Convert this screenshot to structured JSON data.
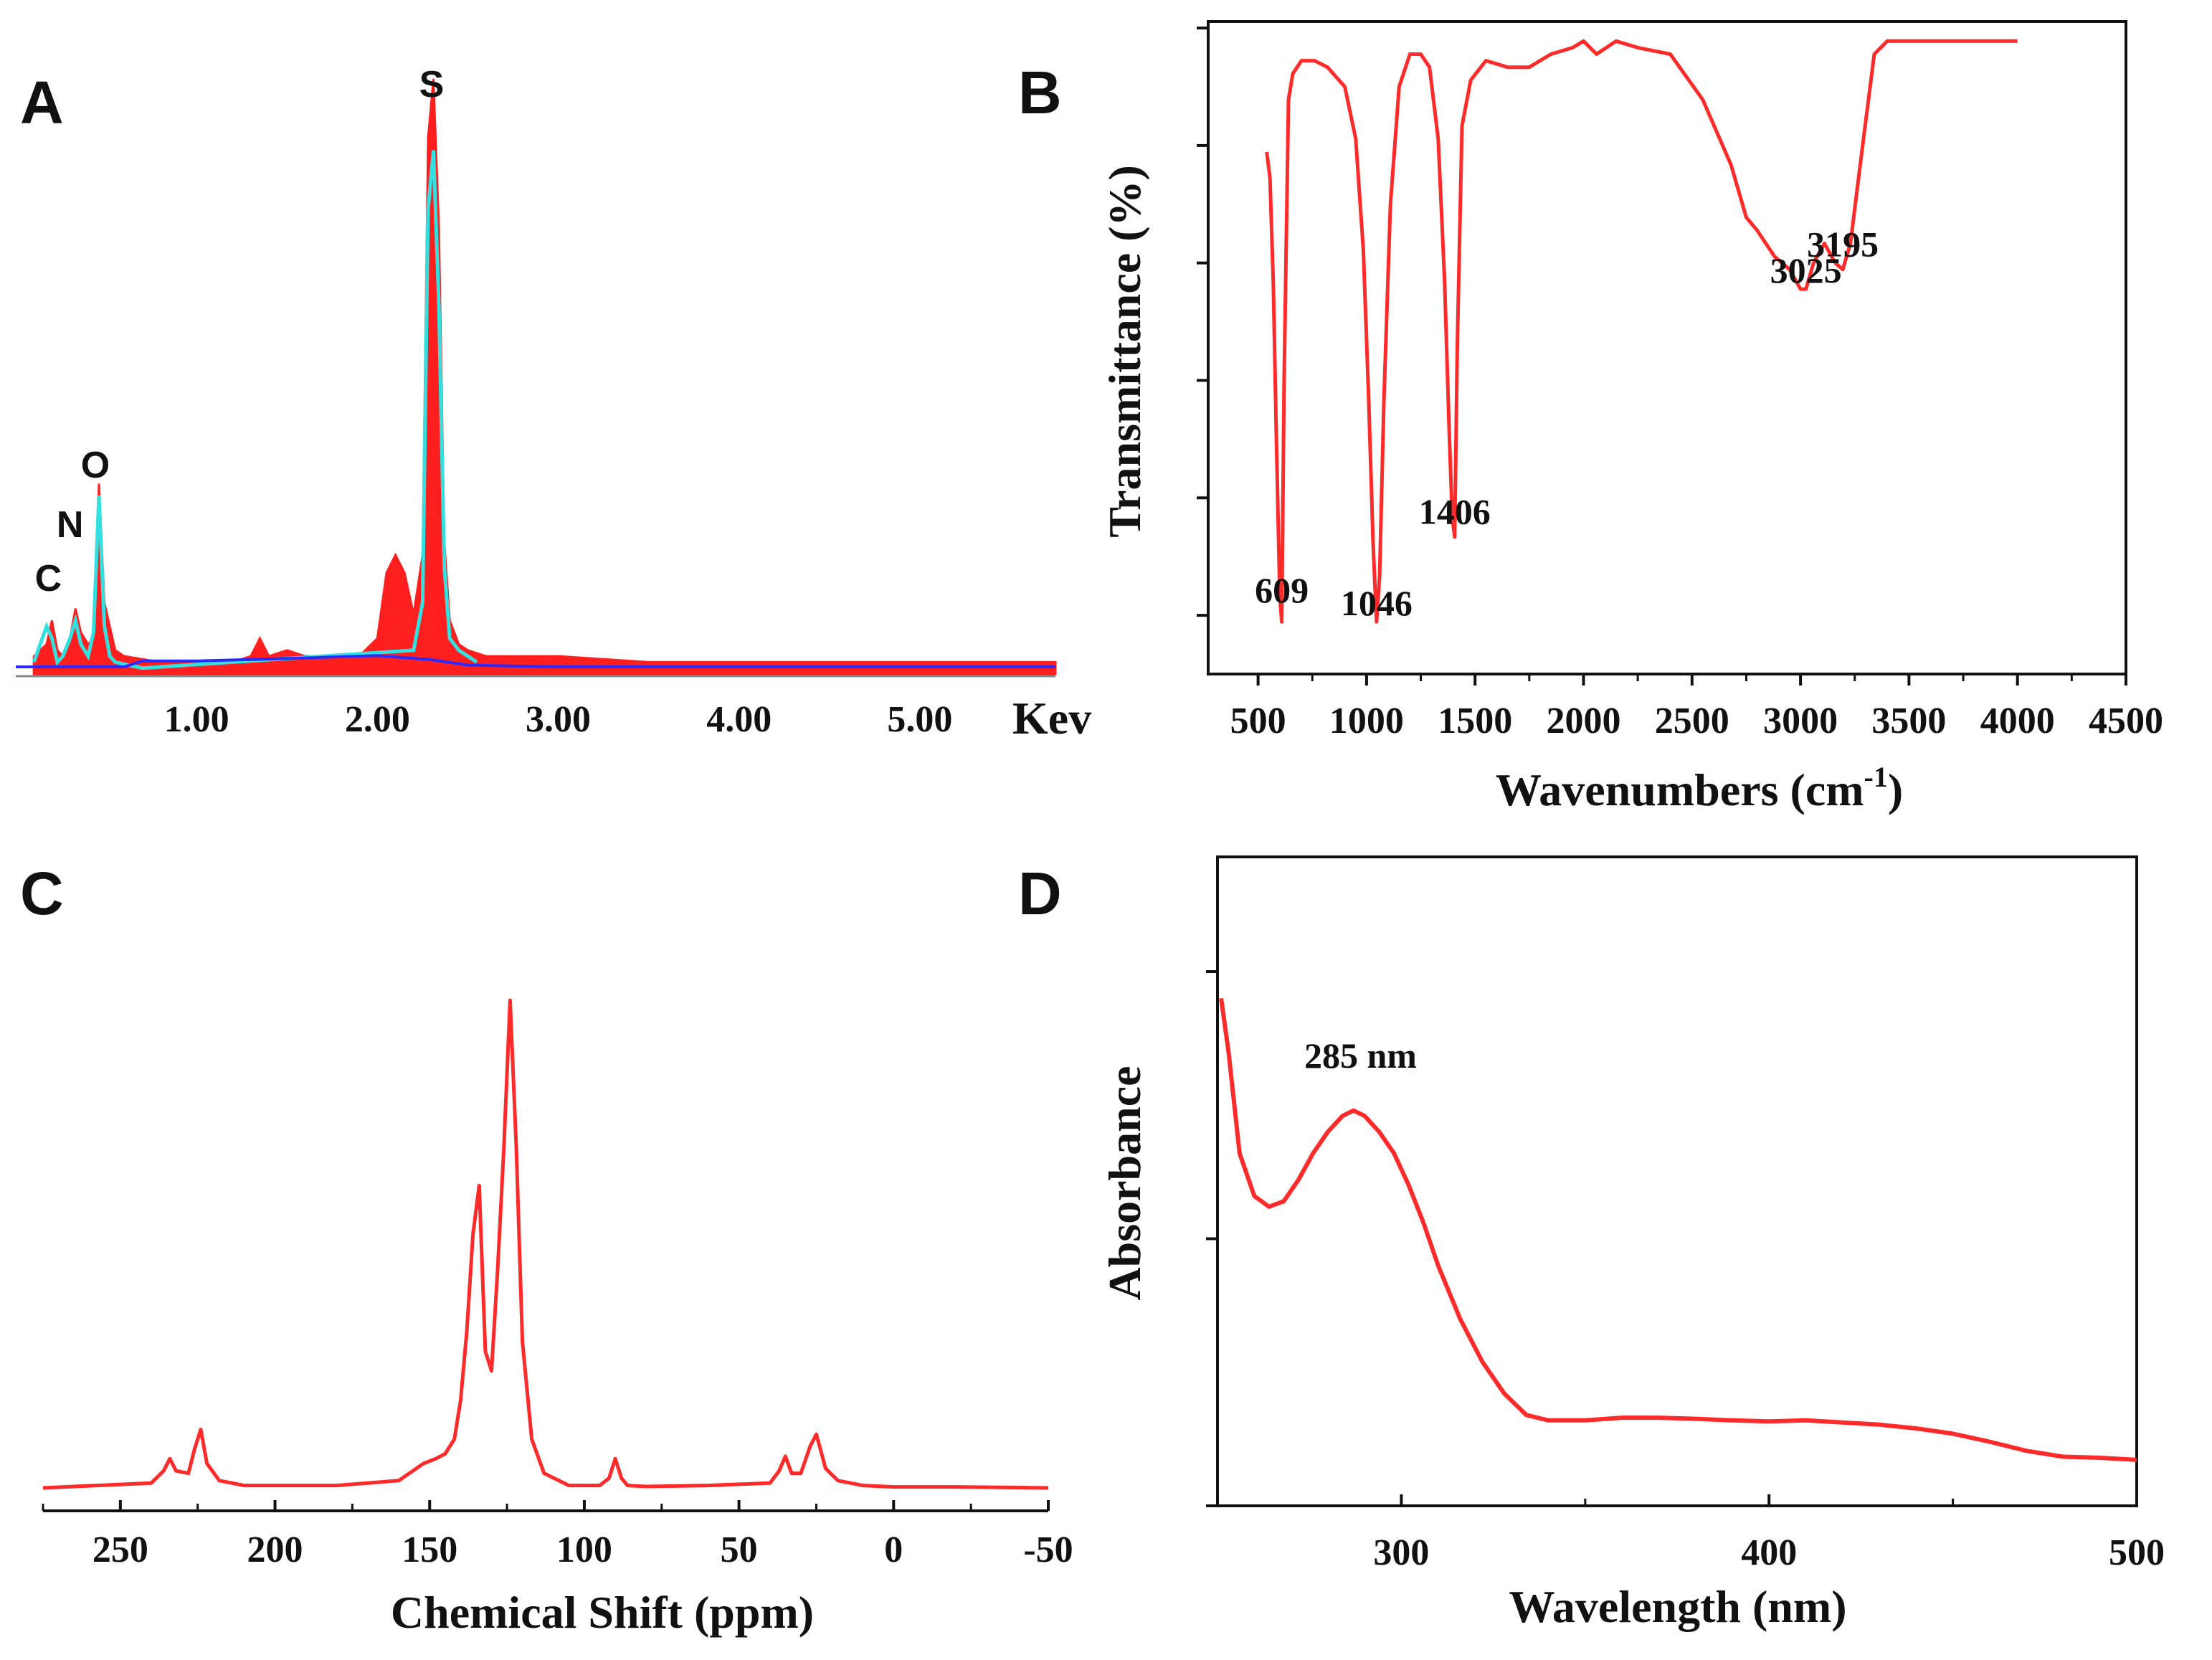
{
  "colors": {
    "curve": "#ff2a2a",
    "eds_fill": "#ff1f1f",
    "eds_overlay": "#33e0e0",
    "baseline": "#2a2aff",
    "axis": "#111111"
  },
  "panels": [
    {
      "letter": "A"
    },
    {
      "letter": "B"
    },
    {
      "letter": "C"
    },
    {
      "letter": "D"
    }
  ],
  "chart_data": [
    {
      "panel": "A",
      "type": "area",
      "title": "",
      "xlabel": "Kev",
      "ylabel": "",
      "xlim": [
        0,
        5.75
      ],
      "ylim": [
        0,
        100
      ],
      "x_tick_labels": [
        "1.00",
        "2.00",
        "3.00",
        "4.00",
        "5.00"
      ],
      "x_ticks": [
        1,
        2,
        3,
        4,
        5
      ],
      "peak_labels": [
        {
          "text": "C",
          "x": 0.18,
          "y": 14
        },
        {
          "text": "N",
          "x": 0.3,
          "y": 23
        },
        {
          "text": "O",
          "x": 0.44,
          "y": 33
        },
        {
          "text": "S",
          "x": 2.3,
          "y": 97
        }
      ],
      "series": [
        {
          "name": "spectrum",
          "style": "filled",
          "x": [
            0.1,
            0.17,
            0.2,
            0.23,
            0.26,
            0.3,
            0.33,
            0.36,
            0.4,
            0.43,
            0.46,
            0.49,
            0.52,
            0.55,
            0.6,
            0.8,
            1.0,
            1.2,
            1.3,
            1.35,
            1.4,
            1.5,
            1.6,
            1.7,
            1.9,
            2.0,
            2.05,
            2.1,
            2.15,
            2.2,
            2.25,
            2.28,
            2.31,
            2.34,
            2.37,
            2.4,
            2.45,
            2.5,
            2.6,
            2.8,
            3.0,
            3.5,
            4.0,
            4.5,
            5.0,
            5.5,
            5.75
          ],
          "y": [
            3,
            5,
            9,
            4,
            3,
            6,
            11,
            7,
            5,
            6,
            32,
            12,
            8,
            4,
            3,
            2,
            2,
            2,
            3,
            6,
            3,
            4,
            3,
            3,
            3,
            6,
            17,
            20,
            17,
            10,
            20,
            90,
            100,
            75,
            22,
            9,
            5,
            4,
            3,
            3,
            3,
            2,
            2,
            2,
            2,
            2,
            2
          ]
        },
        {
          "name": "fit",
          "style": "line",
          "x": [
            0.1,
            0.17,
            0.2,
            0.23,
            0.26,
            0.3,
            0.33,
            0.36,
            0.4,
            0.43,
            0.46,
            0.49,
            0.52,
            0.55,
            0.7,
            2.2,
            2.25,
            2.28,
            2.31,
            2.34,
            2.37,
            2.4,
            2.45,
            2.5,
            2.55
          ],
          "y": [
            2,
            8,
            6,
            2,
            3,
            6,
            9,
            5,
            3,
            7,
            30,
            8,
            3,
            2,
            1,
            4,
            12,
            78,
            88,
            62,
            18,
            6,
            4,
            3,
            2
          ]
        },
        {
          "name": "background",
          "style": "line",
          "x": [
            0,
            0.6,
            0.7,
            1.0,
            1.5,
            1.8,
            2.0,
            2.3,
            2.5,
            3.0,
            4.0,
            5.0,
            5.75
          ],
          "y": [
            1.2,
            1.2,
            2.2,
            2.2,
            2.6,
            2.9,
            3.1,
            2.4,
            1.5,
            1.2,
            1.2,
            1.2,
            1.2
          ]
        }
      ]
    },
    {
      "panel": "B",
      "type": "line",
      "title": "",
      "xlabel": "Wavenumbers (cm",
      "xlabel_sup": "-1",
      "xlabel_close": ")",
      "ylabel": "Transmittance (%)",
      "xlim": [
        270,
        4500
      ],
      "ylim": [
        0,
        100
      ],
      "x_tick_labels": [
        "500",
        "1000",
        "1500",
        "2000",
        "2500",
        "3000",
        "3500",
        "4000",
        "4500"
      ],
      "x_ticks": [
        500,
        1000,
        1500,
        2000,
        2500,
        3000,
        3500,
        4000,
        4500
      ],
      "y_ticks": [
        9,
        27,
        45,
        63,
        81,
        99
      ],
      "annotations": [
        {
          "text": "609",
          "x": 609,
          "y": 11
        },
        {
          "text": "1046",
          "x": 1046,
          "y": 9
        },
        {
          "text": "1406",
          "x": 1406,
          "y": 23
        },
        {
          "text": "3025",
          "x": 3025,
          "y": 60
        },
        {
          "text": "3195",
          "x": 3195,
          "y": 64
        }
      ],
      "series": [
        {
          "name": "FTIR",
          "x": [
            540,
            555,
            570,
            585,
            600,
            609,
            620,
            640,
            660,
            700,
            760,
            820,
            900,
            950,
            985,
            1010,
            1030,
            1046,
            1060,
            1080,
            1110,
            1150,
            1200,
            1250,
            1290,
            1330,
            1360,
            1380,
            1395,
            1406,
            1418,
            1440,
            1480,
            1550,
            1650,
            1750,
            1850,
            1950,
            2000,
            2060,
            2150,
            2250,
            2400,
            2550,
            2680,
            2750,
            2800,
            2880,
            2950,
            3000,
            3025,
            3060,
            3110,
            3160,
            3195,
            3230,
            3290,
            3340,
            3400,
            3500,
            3700,
            3850,
            4000
          ],
          "y": [
            80,
            76,
            60,
            35,
            12,
            8,
            45,
            88,
            92,
            94,
            94,
            93,
            90,
            82,
            65,
            42,
            20,
            8,
            15,
            42,
            72,
            90,
            95,
            95,
            93,
            82,
            60,
            38,
            24,
            21,
            50,
            84,
            91,
            94,
            93,
            93,
            95,
            96,
            97,
            95,
            97,
            96,
            95,
            88,
            78,
            70,
            68,
            64,
            62,
            59,
            59,
            63,
            66,
            63,
            62,
            66,
            82,
            95,
            97,
            97,
            97,
            97,
            97
          ]
        }
      ]
    },
    {
      "panel": "C",
      "type": "line",
      "title": "",
      "xlabel": "Chemical Shift (ppm)",
      "ylabel": "",
      "xlim": [
        275,
        -50
      ],
      "ylim": [
        0,
        100
      ],
      "x_tick_labels": [
        "250",
        "200",
        "150",
        "100",
        "50",
        "0",
        "-50"
      ],
      "x_ticks": [
        250,
        200,
        150,
        100,
        50,
        0,
        -50
      ],
      "series": [
        {
          "name": "NMR",
          "x": [
            275,
            240,
            236,
            234,
            232,
            228,
            226,
            224,
            222,
            218,
            210,
            180,
            160,
            152,
            148,
            145,
            142,
            140,
            138,
            136,
            134,
            132,
            130,
            128,
            126,
            124,
            122,
            120,
            117,
            113,
            105,
            95,
            92,
            90,
            88,
            86,
            80,
            60,
            40,
            37,
            35,
            33,
            30,
            27,
            25,
            22,
            18,
            10,
            0,
            -20,
            -50
          ],
          "y": [
            0,
            1,
            3.5,
            6,
            3.5,
            3,
            8,
            12,
            5,
            1.5,
            0.5,
            0.5,
            1.5,
            5,
            6,
            7,
            10,
            18,
            32,
            52,
            62,
            28,
            24,
            45,
            70,
            100,
            70,
            30,
            10,
            3,
            0.5,
            0.5,
            2,
            6,
            2,
            0.5,
            0.3,
            0.5,
            1,
            3.5,
            6.5,
            3,
            3,
            8.5,
            11,
            4,
            1.5,
            0.5,
            0.2,
            0.2,
            0
          ]
        }
      ]
    },
    {
      "panel": "D",
      "type": "line",
      "title": "",
      "xlabel": "Wavelength (nm)",
      "ylabel": "Absorbance",
      "xlim": [
        250,
        500
      ],
      "ylim": [
        0,
        100
      ],
      "x_tick_labels": [
        "300",
        "400",
        "500"
      ],
      "x_ticks": [
        300,
        400,
        500
      ],
      "x_minor_ticks": [
        250,
        350,
        450
      ],
      "y_ticks": [
        0,
        50,
        100
      ],
      "annotations": [
        {
          "text": "285 nm",
          "x": 285,
          "y": 82
        }
      ],
      "series": [
        {
          "name": "UV-Vis",
          "x": [
            251,
            253,
            256,
            260,
            264,
            268,
            272,
            276,
            280,
            284,
            287,
            290,
            294,
            298,
            302,
            306,
            310,
            316,
            322,
            328,
            334,
            340,
            350,
            360,
            370,
            380,
            390,
            400,
            410,
            420,
            430,
            440,
            450,
            460,
            470,
            480,
            490,
            500
          ],
          "y": [
            95,
            85,
            66,
            58,
            56,
            57,
            61,
            66,
            70,
            73,
            74,
            73,
            70,
            66,
            60,
            53,
            45,
            35,
            27,
            21,
            17,
            16,
            16,
            16.5,
            16.5,
            16.3,
            16,
            15.8,
            16,
            15.6,
            15.2,
            14.5,
            13.5,
            12,
            10.3,
            9.2,
            9,
            8.6
          ]
        }
      ]
    }
  ]
}
